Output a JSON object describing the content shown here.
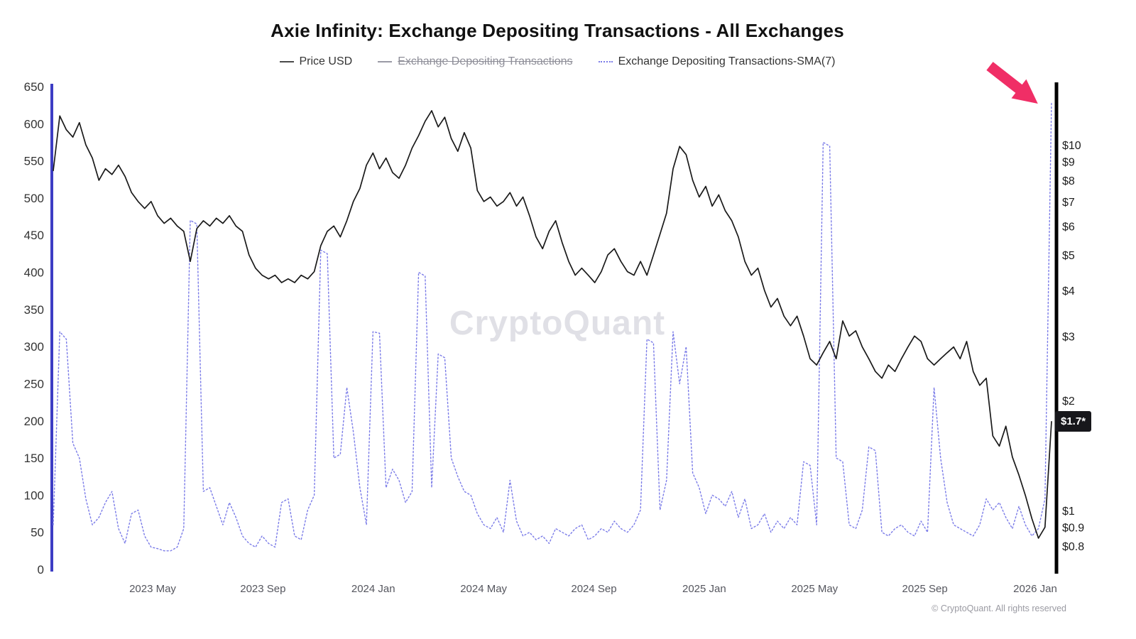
{
  "header": {
    "title": "Axie Infinity: Exchange Depositing Transactions - All Exchanges"
  },
  "legend": {
    "items": [
      {
        "label": "Price USD",
        "color": "#4a4a4a",
        "line_style": "solid",
        "disabled": false
      },
      {
        "label": "Exchange Depositing Transactions",
        "color": "#9a9aa6",
        "line_style": "solid",
        "disabled": true
      },
      {
        "label": "Exchange Depositing Transactions-SMA(7)",
        "color": "#7b7ce8",
        "line_style": "dotted",
        "disabled": false
      }
    ]
  },
  "watermark": "CryptoQuant",
  "last_price_label": "$1.7*",
  "annotation": {
    "shape": "arrow",
    "color": "#f02e66"
  },
  "footer": {
    "copyright": "© CryptoQuant. All rights reserved"
  },
  "chart_data": {
    "type": "line",
    "title": "Axie Infinity: Exchange Depositing Transactions - All Exchanges",
    "x_axis": {
      "labels": [
        "2023 May",
        "2023 Sep",
        "2024 Jan",
        "2024 May",
        "2024 Sep",
        "2025 Jan",
        "2025 May",
        "2025 Sep",
        "2026 Jan"
      ]
    },
    "left_axis": {
      "label": "Exchange Depositing Transactions-SMA(7)",
      "min": 0,
      "max": 650,
      "ticks": [
        0,
        50,
        100,
        150,
        200,
        250,
        300,
        350,
        400,
        450,
        500,
        550,
        600,
        650
      ],
      "color": "#3d3dc4"
    },
    "right_axis": {
      "label": "Price USD",
      "scale": "log",
      "ticks": [
        "$10",
        "$9",
        "$8",
        "$7",
        "$6",
        "$5",
        "$4",
        "$3",
        "$2",
        "$1",
        "$0.9",
        "$0.8"
      ],
      "color": "#000000"
    },
    "series": [
      {
        "name": "Exchange Depositing Transactions-SMA(7)",
        "axis": "left",
        "style": "dotted",
        "color": "#7b7ce8",
        "values": [
          60,
          320,
          310,
          170,
          150,
          95,
          60,
          70,
          90,
          105,
          55,
          35,
          75,
          80,
          45,
          30,
          28,
          25,
          25,
          30,
          55,
          470,
          465,
          105,
          110,
          85,
          60,
          90,
          70,
          45,
          35,
          30,
          45,
          35,
          30,
          90,
          95,
          45,
          40,
          80,
          100,
          430,
          425,
          150,
          155,
          245,
          185,
          110,
          60,
          320,
          318,
          110,
          135,
          120,
          90,
          105,
          400,
          395,
          110,
          290,
          285,
          150,
          125,
          105,
          100,
          75,
          60,
          55,
          70,
          50,
          120,
          65,
          45,
          50,
          40,
          45,
          35,
          55,
          50,
          45,
          55,
          60,
          40,
          45,
          55,
          50,
          65,
          55,
          50,
          60,
          80,
          310,
          305,
          80,
          120,
          320,
          250,
          300,
          130,
          110,
          75,
          100,
          95,
          85,
          105,
          70,
          95,
          55,
          60,
          75,
          50,
          65,
          55,
          70,
          60,
          145,
          140,
          60,
          575,
          570,
          150,
          145,
          60,
          55,
          80,
          165,
          160,
          50,
          45,
          55,
          60,
          50,
          45,
          65,
          50,
          245,
          150,
          90,
          60,
          55,
          50,
          45,
          60,
          95,
          80,
          90,
          70,
          55,
          85,
          60,
          45,
          55,
          95,
          630
        ]
      },
      {
        "name": "Price USD",
        "axis": "right",
        "style": "solid",
        "color": "#1a1a1a",
        "values": [
          8.5,
          12.0,
          11.0,
          10.5,
          11.5,
          10.0,
          9.2,
          8.0,
          8.6,
          8.3,
          8.8,
          8.2,
          7.4,
          7.0,
          6.7,
          7.0,
          6.4,
          6.1,
          6.3,
          6.0,
          5.8,
          4.8,
          5.9,
          6.2,
          6.0,
          6.3,
          6.1,
          6.4,
          6.0,
          5.8,
          5.0,
          4.6,
          4.4,
          4.3,
          4.4,
          4.2,
          4.3,
          4.2,
          4.4,
          4.3,
          4.5,
          5.3,
          5.8,
          6.0,
          5.6,
          6.2,
          7.0,
          7.6,
          8.8,
          9.5,
          8.6,
          9.2,
          8.4,
          8.1,
          8.8,
          9.8,
          10.6,
          11.6,
          12.4,
          11.2,
          11.9,
          10.4,
          9.6,
          10.8,
          9.8,
          7.5,
          7.0,
          7.2,
          6.8,
          7.0,
          7.4,
          6.8,
          7.2,
          6.4,
          5.6,
          5.2,
          5.8,
          6.2,
          5.4,
          4.8,
          4.4,
          4.6,
          4.4,
          4.2,
          4.5,
          5.0,
          5.2,
          4.8,
          4.5,
          4.4,
          4.8,
          4.4,
          5.0,
          5.7,
          6.5,
          8.6,
          9.9,
          9.4,
          8.0,
          7.2,
          7.7,
          6.8,
          7.3,
          6.6,
          6.2,
          5.6,
          4.8,
          4.4,
          4.6,
          4.0,
          3.6,
          3.8,
          3.4,
          3.2,
          3.4,
          3.0,
          2.6,
          2.5,
          2.7,
          2.9,
          2.6,
          3.3,
          3.0,
          3.1,
          2.8,
          2.6,
          2.4,
          2.3,
          2.5,
          2.4,
          2.6,
          2.8,
          3.0,
          2.9,
          2.6,
          2.5,
          2.6,
          2.7,
          2.8,
          2.6,
          2.9,
          2.4,
          2.2,
          2.3,
          1.6,
          1.5,
          1.7,
          1.4,
          1.25,
          1.1,
          0.95,
          0.84,
          0.9,
          1.75
        ]
      }
    ]
  }
}
